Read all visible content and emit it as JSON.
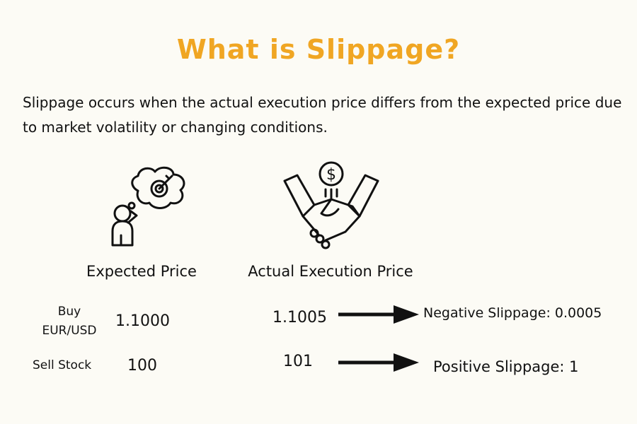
{
  "title": "What is Slippage?",
  "description": "Slippage occurs when the actual execution price differs from the expected price due to market volatility or changing conditions.",
  "columns": [
    "Expected Price",
    "Actual Execution Price"
  ],
  "rows": [
    {
      "label": "Buy EUR/USD",
      "expected": "1.1000",
      "actual": "1.1005",
      "result": "Negative Slippage: 0.0005"
    },
    {
      "label": "Sell Stock",
      "expected": "100",
      "actual": "101",
      "result": "Positive Slippage: 1"
    }
  ]
}
